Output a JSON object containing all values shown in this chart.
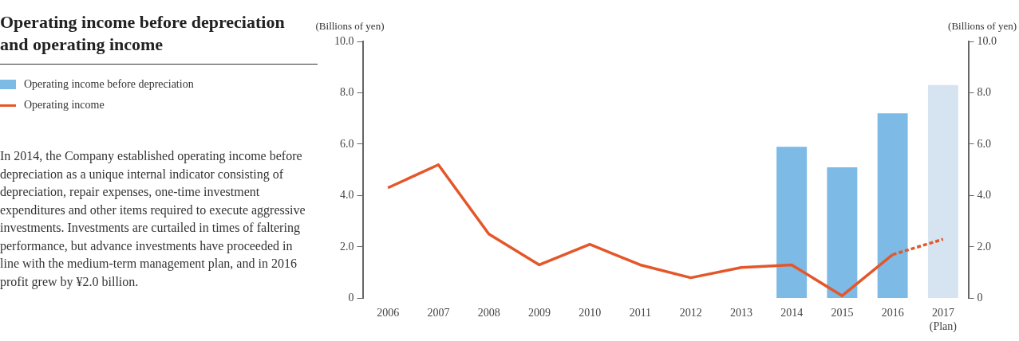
{
  "chart_data": {
    "type": "bar",
    "title": "Operating income before depreciation and operating income",
    "categories": [
      "2006",
      "2007",
      "2008",
      "2009",
      "2010",
      "2011",
      "2012",
      "2013",
      "2014",
      "2015",
      "2016",
      "2017\n(Plan)"
    ],
    "series": [
      {
        "name": "Operating income before depreciation",
        "color": "#7dbae5",
        "colors": [
          "#7dbae5",
          "#7dbae5",
          "#7dbae5",
          "#7dbae5",
          "#7dbae5",
          "#7dbae5",
          "#7dbae5",
          "#7dbae5",
          "#7dbae5",
          "#7dbae5",
          "#7dbae5",
          "#d6e3f0"
        ],
        "values": [
          null,
          null,
          null,
          null,
          null,
          null,
          null,
          null,
          5.9,
          5.1,
          7.2,
          8.3
        ]
      },
      {
        "name": "Operating income",
        "type": "line",
        "color": "#e4572a",
        "line_style": "solid",
        "values": [
          4.3,
          5.2,
          2.5,
          1.3,
          2.1,
          1.3,
          0.8,
          1.2,
          1.3,
          0.1,
          1.7,
          null
        ]
      },
      {
        "type": "line",
        "color": "#e4572a",
        "line_style": "dashed",
        "values": [
          null,
          null,
          null,
          null,
          null,
          null,
          null,
          null,
          null,
          null,
          1.7,
          2.3
        ]
      }
    ],
    "ylabel": "(Billions of yen)",
    "y2label": "(Billions of yen)",
    "ylim": [
      0,
      10
    ],
    "yticks": [
      0,
      {
        "value": 2,
        "label": "2.0"
      },
      {
        "value": 4,
        "label": "4.0"
      },
      {
        "value": 6,
        "label": "6.0"
      },
      {
        "value": 8,
        "label": "8.0"
      },
      {
        "value": 10,
        "label": "10.0"
      }
    ],
    "y2lim": [
      0,
      10
    ],
    "y2ticks": [
      0,
      {
        "value": 2,
        "label": "2.0"
      },
      {
        "value": 4,
        "label": "4.0"
      },
      {
        "value": 6,
        "label": "6.0"
      },
      {
        "value": 8,
        "label": "8.0"
      },
      {
        "value": 10,
        "label": "10.0"
      }
    ],
    "grid": false,
    "legend": "top left",
    "marker": "none",
    "annotations": [
      "In 2014, the Company established operating income before depreciation as a unique internal indicator consisting of depreciation, repair expenses, one-time investment expenditures and other items required to execute aggressive investments. Investments are curtailed in times of faltering performance, but advance investments have proceeded in line with the medium-term management plan, and in 2016 profit grew by ¥2.0 billion."
    ]
  }
}
